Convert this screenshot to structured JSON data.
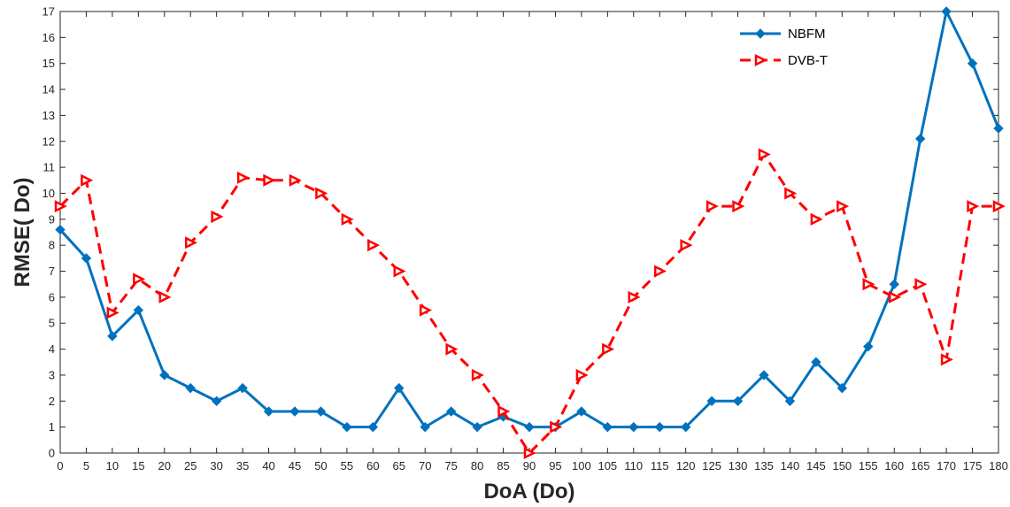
{
  "chart_data": {
    "type": "line",
    "xlabel": "DoA (Do)",
    "ylabel": "RMSE( Do)",
    "xlim": [
      0,
      180
    ],
    "ylim": [
      0,
      17
    ],
    "x_ticks": [
      0,
      5,
      10,
      15,
      20,
      25,
      30,
      35,
      40,
      45,
      50,
      55,
      60,
      65,
      70,
      75,
      80,
      85,
      90,
      95,
      100,
      105,
      110,
      115,
      120,
      125,
      130,
      135,
      140,
      145,
      150,
      155,
      160,
      165,
      170,
      175,
      180
    ],
    "y_ticks": [
      0,
      1,
      2,
      3,
      4,
      5,
      6,
      7,
      8,
      9,
      10,
      11,
      12,
      13,
      14,
      15,
      16,
      17
    ],
    "grid": false,
    "legend_position": "top-right",
    "x": [
      0,
      5,
      10,
      15,
      20,
      25,
      30,
      35,
      40,
      45,
      50,
      55,
      60,
      65,
      70,
      75,
      80,
      85,
      90,
      95,
      100,
      105,
      110,
      115,
      120,
      125,
      130,
      135,
      140,
      145,
      150,
      155,
      160,
      165,
      170,
      175,
      180
    ],
    "series": [
      {
        "name": "NBFM",
        "color": "#0072BD",
        "line_style": "solid",
        "marker": "diamond",
        "values": [
          8.6,
          7.5,
          4.5,
          5.5,
          3,
          2.5,
          2,
          2.5,
          1.6,
          1.6,
          1.6,
          1,
          1,
          2.5,
          1,
          1.6,
          1,
          1.4,
          1,
          1,
          1.6,
          1,
          1,
          1,
          1,
          2,
          2,
          3,
          2,
          3.5,
          2.5,
          4.1,
          6.5,
          12.1,
          17,
          15,
          12.5
        ]
      },
      {
        "name": "DVB-T",
        "color": "#FF0000",
        "line_style": "dashed",
        "marker": "triangle-right",
        "values": [
          9.5,
          10.5,
          5.4,
          6.7,
          6,
          8.1,
          9.1,
          10.6,
          10.5,
          10.5,
          10,
          9,
          8,
          7,
          5.5,
          4,
          3,
          1.6,
          0,
          1,
          3,
          4,
          6,
          7,
          8,
          9.5,
          9.5,
          11.5,
          10,
          9,
          9.5,
          6.5,
          6,
          6.5,
          3.6,
          9.5,
          9.5
        ]
      }
    ]
  }
}
